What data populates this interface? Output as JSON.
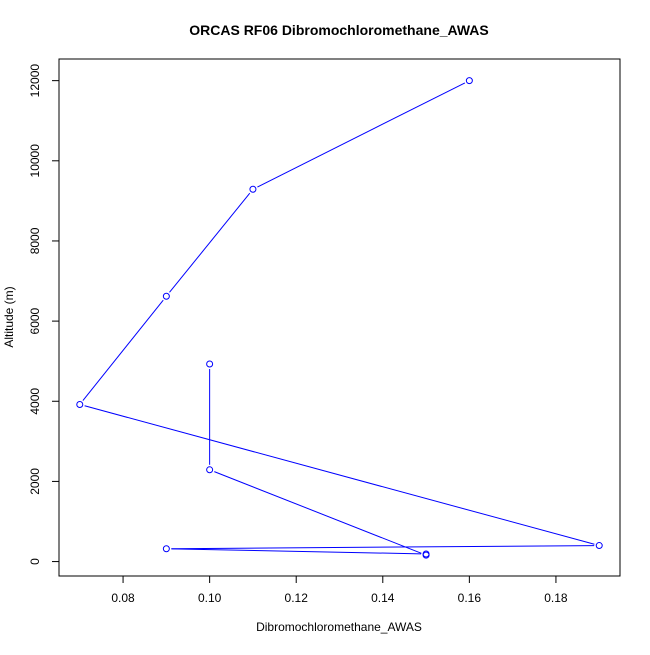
{
  "chart_data": {
    "type": "line",
    "title": "ORCAS RF06 Dibromochloromethane_AWAS",
    "xlabel": "Dibromochloromethane_AWAS",
    "ylabel": "Altitude (m)",
    "xlim": [
      0.0652,
      0.1948
    ],
    "ylim": [
      -360,
      12540
    ],
    "x_ticks": [
      0.08,
      0.1,
      0.12,
      0.14,
      0.16,
      0.18
    ],
    "x_tick_labels": [
      "0.08",
      "0.10",
      "0.12",
      "0.14",
      "0.16",
      "0.18"
    ],
    "y_ticks": [
      0,
      2000,
      4000,
      6000,
      8000,
      10000,
      12000
    ],
    "y_tick_labels": [
      "0",
      "2000",
      "4000",
      "6000",
      "8000",
      "10000",
      "12000"
    ],
    "grid": false,
    "series": [
      {
        "color": "#0000ff",
        "marker": "open-circle",
        "x": [
          0.1,
          0.1,
          0.15,
          0.15,
          0.09,
          0.19,
          0.07,
          0.09,
          0.11,
          0.16
        ],
        "y": [
          4930,
          2290,
          160,
          190,
          320,
          400,
          3920,
          6620,
          9290,
          12000
        ]
      }
    ]
  }
}
